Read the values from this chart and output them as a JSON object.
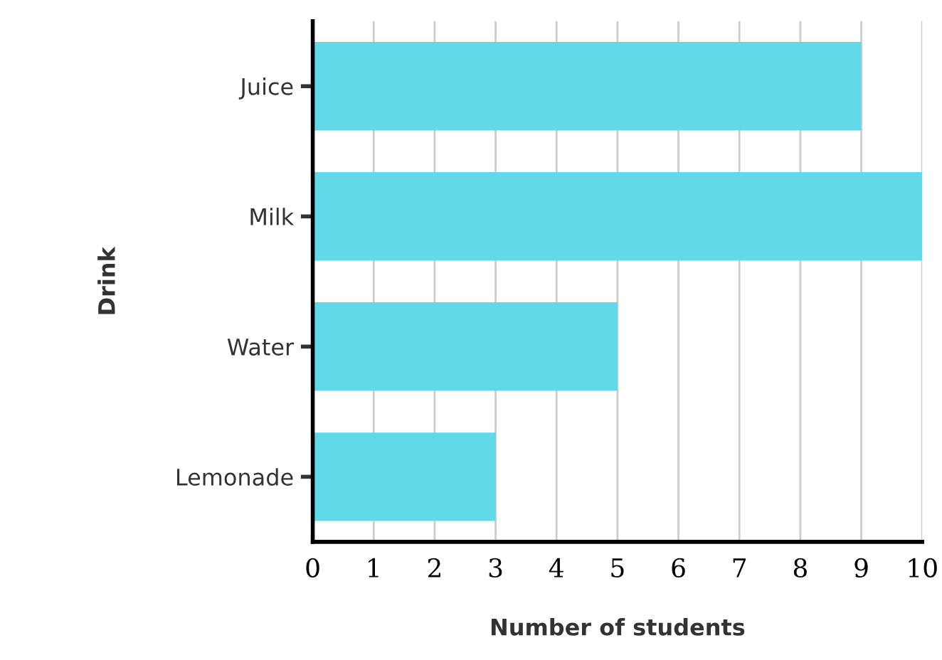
{
  "chart_data": {
    "type": "bar",
    "orientation": "horizontal",
    "xlabel": "Number of students",
    "ylabel": "Drink",
    "categories": [
      "Juice",
      "Milk",
      "Water",
      "Lemonade"
    ],
    "values": [
      9,
      10,
      5,
      3
    ],
    "color": "#62d9e8",
    "xlim": [
      0,
      10
    ],
    "xticks": [
      0,
      1,
      2,
      3,
      4,
      5,
      6,
      7,
      8,
      9,
      10
    ],
    "grid": "x"
  }
}
